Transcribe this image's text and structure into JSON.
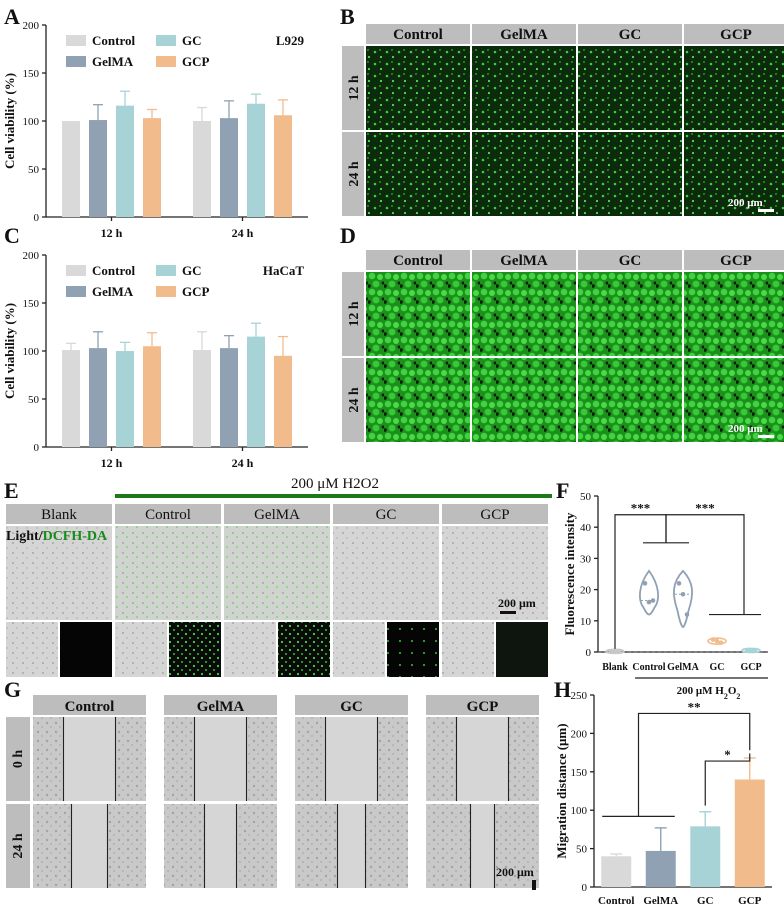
{
  "panels": {
    "A": "A",
    "B": "B",
    "C": "C",
    "D": "D",
    "E": "E",
    "F": "F",
    "G": "G",
    "H": "H"
  },
  "groups": [
    "Control",
    "GelMA",
    "GC",
    "GCP"
  ],
  "times": [
    "12 h",
    "24 h"
  ],
  "scale_bar": "200 μm",
  "colors": {
    "Control": "#d9d9d9",
    "GelMA": "#8fa1b3",
    "GC": "#a8d3d6",
    "GCP": "#f2bb8c",
    "green": "#1a7a1a"
  },
  "panel_A": {
    "cell_line": "L929",
    "chart_data": {
      "type": "bar",
      "ylabel": "Cell viability (%)",
      "ylim": [
        0,
        200
      ],
      "yticks": [
        0,
        50,
        100,
        150,
        200
      ],
      "categories": [
        "12 h",
        "24 h"
      ],
      "series": [
        {
          "name": "Control",
          "values": [
            100,
            100
          ],
          "err": [
            0,
            14
          ]
        },
        {
          "name": "GelMA",
          "values": [
            101,
            103
          ],
          "err": [
            16,
            18
          ]
        },
        {
          "name": "GC",
          "values": [
            116,
            118
          ],
          "err": [
            15,
            10
          ]
        },
        {
          "name": "GCP",
          "values": [
            103,
            106
          ],
          "err": [
            9,
            16
          ]
        }
      ]
    }
  },
  "panel_C": {
    "cell_line": "HaCaT",
    "chart_data": {
      "type": "bar",
      "ylabel": "Cell viability (%)",
      "ylim": [
        0,
        200
      ],
      "yticks": [
        0,
        50,
        100,
        150,
        200
      ],
      "categories": [
        "12 h",
        "24 h"
      ],
      "series": [
        {
          "name": "Control",
          "values": [
            101,
            101
          ],
          "err": [
            7,
            19
          ]
        },
        {
          "name": "GelMA",
          "values": [
            103,
            103
          ],
          "err": [
            17,
            13
          ]
        },
        {
          "name": "GC",
          "values": [
            100,
            115
          ],
          "err": [
            9,
            14
          ]
        },
        {
          "name": "GCP",
          "values": [
            105,
            95
          ],
          "err": [
            14,
            20
          ]
        }
      ]
    }
  },
  "panel_E": {
    "treatment": "200 μM H2O2",
    "columns": [
      "Blank",
      "Control",
      "GelMA",
      "GC",
      "GCP"
    ],
    "overlay_left": "Light",
    "overlay_sep": "/",
    "overlay_right": "DCFH-DA"
  },
  "panel_F": {
    "chart_data": {
      "type": "violin",
      "ylabel": "Fluorescence intensity",
      "ylim": [
        0,
        50
      ],
      "yticks": [
        0,
        10,
        20,
        30,
        40,
        50
      ],
      "categories": [
        "Blank",
        "Control",
        "GelMA",
        "GC",
        "GCP"
      ],
      "series": [
        {
          "name": "Blank",
          "values": [
            0.2,
            0.1,
            0.3
          ]
        },
        {
          "name": "Control",
          "values": [
            22,
            16,
            16.5
          ]
        },
        {
          "name": "GelMA",
          "values": [
            22,
            18.5,
            12
          ]
        },
        {
          "name": "GC",
          "values": [
            4,
            3.5,
            3
          ]
        },
        {
          "name": "GCP",
          "values": [
            0.6,
            0.5,
            0.4
          ]
        }
      ],
      "significance": [
        "***",
        "***"
      ],
      "treatment_prefix": "200 μM H",
      "treatment_sub": "2",
      "treatment_o": "O",
      "treatment_sub2": "2"
    }
  },
  "panel_G": {
    "rows": [
      "0 h",
      "24 h"
    ]
  },
  "panel_H": {
    "chart_data": {
      "type": "bar",
      "ylabel": "Migration distance (μm)",
      "ylim": [
        0,
        250
      ],
      "yticks": [
        0,
        50,
        100,
        150,
        200,
        250
      ],
      "categories": [
        "Control",
        "GelMA",
        "GC",
        "GCP"
      ],
      "values": [
        40,
        47,
        79,
        140
      ],
      "err": [
        3,
        30,
        19,
        28
      ],
      "significance": [
        "**",
        "*"
      ]
    }
  }
}
